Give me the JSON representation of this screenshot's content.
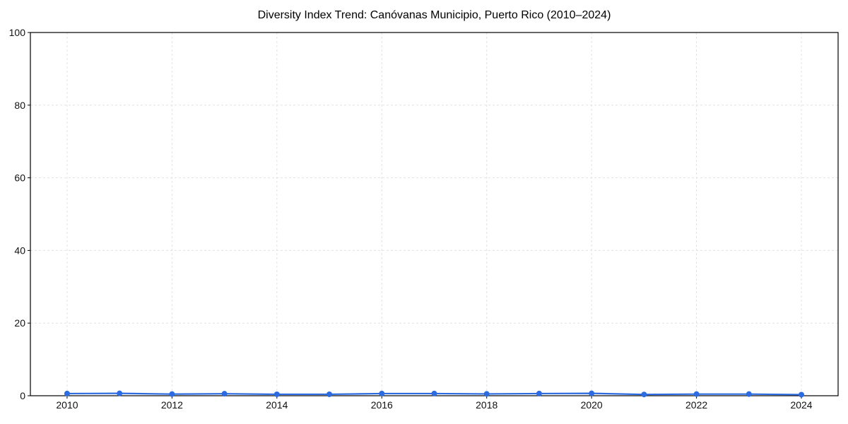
{
  "figure": {
    "background": "#ffffff"
  },
  "chart_data": {
    "type": "line",
    "title": "Diversity Index Trend: Canóvanas Municipio, Puerto Rico (2010–2024)",
    "xlabel": "",
    "ylabel": "",
    "x": [
      2010,
      2011,
      2012,
      2013,
      2014,
      2015,
      2016,
      2017,
      2018,
      2019,
      2020,
      2021,
      2022,
      2023,
      2024
    ],
    "series": [
      {
        "name": "Diversity Index",
        "color": "#2d6ce0",
        "marker": "circle",
        "values": [
          0.6,
          0.65,
          0.45,
          0.55,
          0.4,
          0.4,
          0.6,
          0.6,
          0.5,
          0.6,
          0.65,
          0.35,
          0.45,
          0.45,
          0.3
        ]
      }
    ],
    "xlim": [
      2009.3,
      2024.7
    ],
    "ylim": [
      0,
      100
    ],
    "xticks": [
      2010,
      2012,
      2014,
      2016,
      2018,
      2020,
      2022,
      2024
    ],
    "yticks": [
      0,
      20,
      40,
      60,
      80,
      100
    ],
    "grid": true,
    "grid_style": "dashed",
    "grid_color": "#e2e2e2",
    "legend": "none",
    "axis_color": "#000000",
    "tick_label_color": "#111111"
  }
}
